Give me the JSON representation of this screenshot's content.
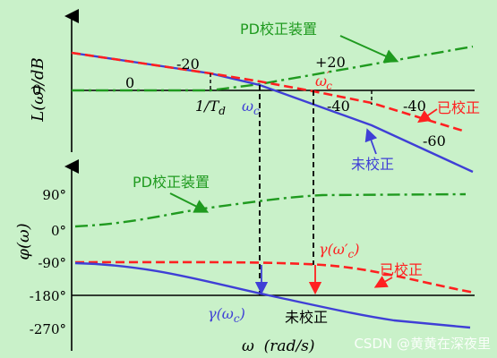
{
  "magnitude": {
    "axis_label": "L(ω)/dB",
    "zero_label": "0",
    "slope_labels": {
      "left_zero": "0",
      "minus20": "-20",
      "plus20": "+20",
      "minus40_a": "-40",
      "minus40_b": "-40",
      "minus60": "-60"
    },
    "break_label": "1/T",
    "break_sub": "d",
    "wc_label": "ω",
    "wc_sub": "c",
    "wcp_label": "ω",
    "wcp_sub": "c",
    "wcp_prime": "′",
    "curves": {
      "pd": "PD校正装置",
      "corrected": "已校正",
      "uncorrected": "未校正"
    }
  },
  "phase": {
    "axis_label": "φ(ω)",
    "ticks": [
      "90°",
      "0°",
      "-90°",
      "-180°",
      "-270°"
    ],
    "curves": {
      "pd": "PD校正装置",
      "corrected": "已校正",
      "uncorrected": "未校正"
    },
    "gamma_wc": "γ(ω",
    "gamma_wc_sub": "c",
    "gamma_wc_end": ")",
    "gamma_wcp": "γ(ω′",
    "gamma_wcp_sub": "c",
    "gamma_wcp_end": ")"
  },
  "x_axis_label": "ω  (rad/s)",
  "watermark": "CSDN @黄黄在深夜里",
  "colors": {
    "background": "#c9f1c9",
    "pd": "#1f9a1f",
    "corrected": "#ff2020",
    "uncorrected": "#3f3fd6",
    "axis": "#000000"
  }
}
